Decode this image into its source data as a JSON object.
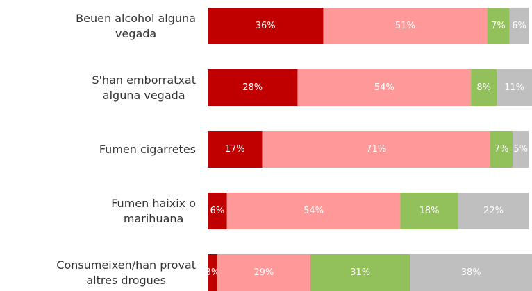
{
  "chart_data": {
    "type": "stacked_bar_horizontal",
    "categories": [
      "Beuen alcohol alguna\nvegada",
      "S'han emborratxat\nalguna vegada",
      "Fumen cigarretes",
      "Fumen haixix o\nmarihuana",
      "Consumeixen/han provat\naltres drogues"
    ],
    "series": [
      {
        "color": "#c00000",
        "values": [
          36,
          28,
          17,
          6,
          3
        ],
        "value_labels": [
          "36%",
          "28%",
          "17%",
          "6%",
          "3%"
        ]
      },
      {
        "color": "#ff9999",
        "values": [
          51,
          54,
          71,
          54,
          29
        ],
        "value_labels": [
          "51%",
          "54%",
          "71%",
          "54%",
          "29%"
        ]
      },
      {
        "color": "#92c05a",
        "values": [
          7,
          8,
          7,
          18,
          31
        ],
        "value_labels": [
          "7%",
          "8%",
          "7%",
          "18%",
          "31%"
        ]
      },
      {
        "color": "#bfbfbf",
        "values": [
          6,
          11,
          5,
          22,
          38
        ],
        "value_labels": [
          "6%",
          "11%",
          "5%",
          "22%",
          "38%"
        ]
      }
    ],
    "xlim": [
      0,
      101
    ]
  }
}
